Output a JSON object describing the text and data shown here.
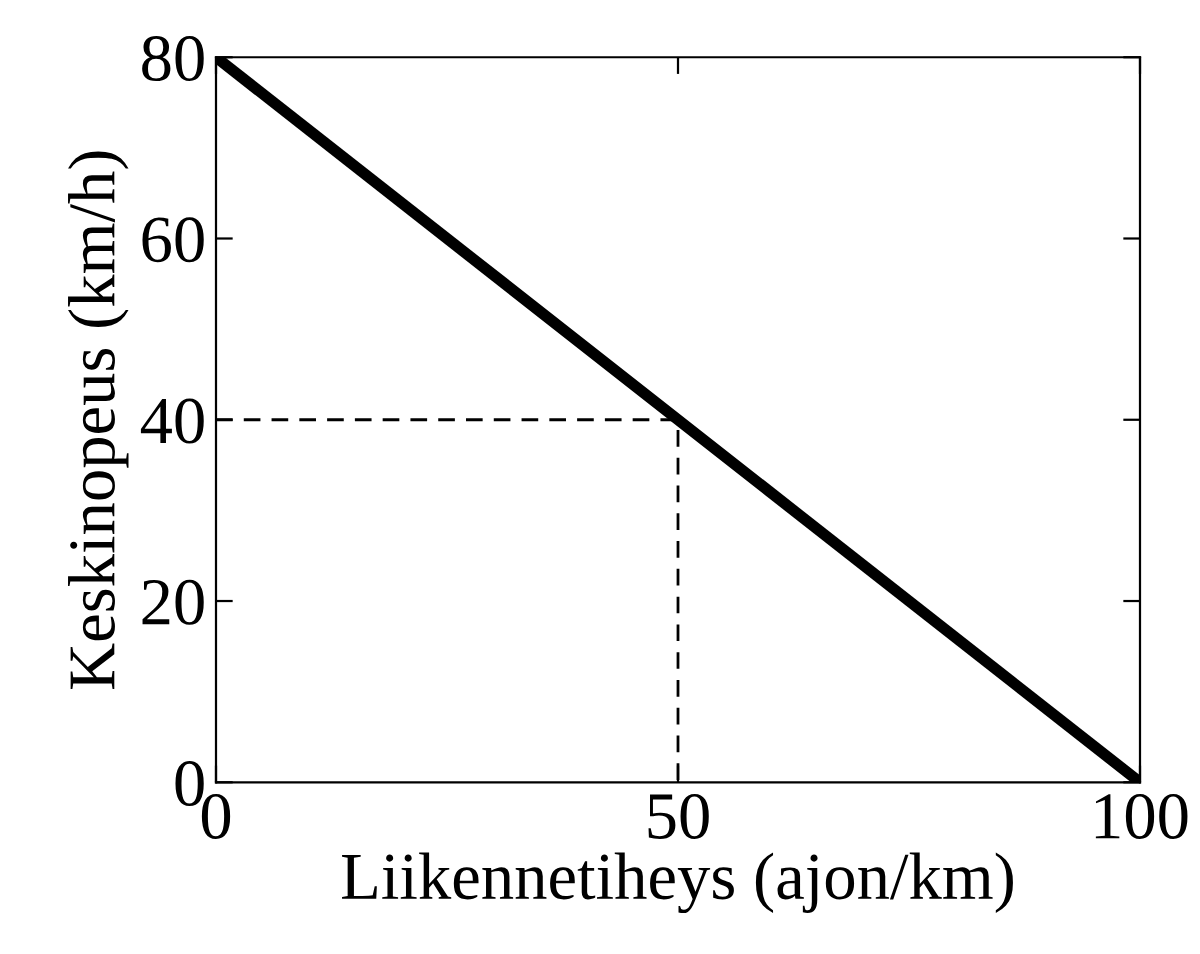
{
  "chart_data": {
    "type": "line",
    "xlabel": "Liikennetiheys (ajon/km)",
    "ylabel": "Keskinopeus (km/h)",
    "xlim": [
      0,
      100
    ],
    "xticks": [
      0,
      50,
      100
    ],
    "ylim": [
      0,
      80
    ],
    "yticks": [
      0,
      20,
      40,
      60,
      80
    ],
    "grid": false,
    "legend": false,
    "marker": "none",
    "series": [
      {
        "color": "#000000",
        "x": [
          0,
          100
        ],
        "values": [
          80,
          0
        ],
        "line_style": "solid"
      },
      {
        "color": "#000000",
        "x": [
          0,
          50,
          50
        ],
        "values": [
          40,
          40,
          0
        ],
        "line_style": "dashed"
      }
    ]
  }
}
